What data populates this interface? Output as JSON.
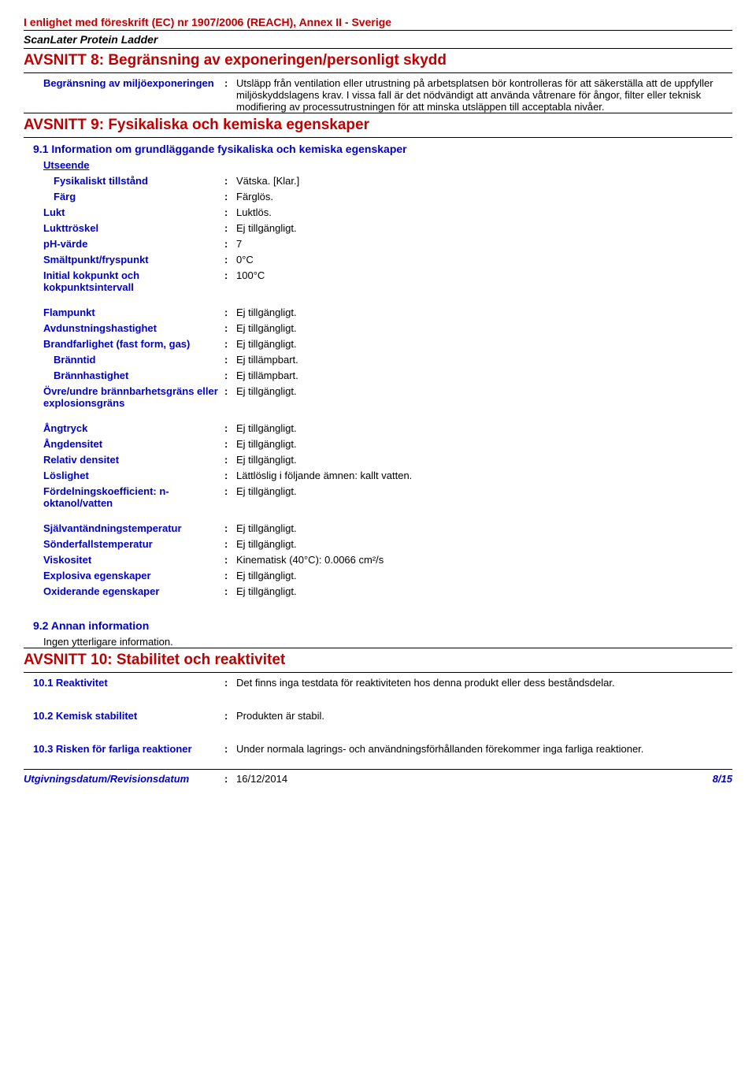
{
  "header": {
    "regulation": "I enlighet med föreskrift (EC) nr 1907/2006 (REACH), Annex II - Sverige",
    "product": "ScanLater Protein Ladder"
  },
  "section8": {
    "title": "AVSNITT 8: Begränsning av exponeringen/personligt skydd",
    "env_limit_label": "Begränsning av miljöexponeringen",
    "env_limit_value": "Utsläpp från ventilation eller utrustning på arbetsplatsen bör kontrolleras för att säkerställa att de uppfyller miljöskyddslagens krav.  I vissa fall är det nödvändigt att använda våtrenare för ångor, filter eller teknisk modifiering av processutrustningen för att minska utsläppen till acceptabla nivåer."
  },
  "section9": {
    "title": "AVSNITT 9: Fysikaliska och kemiska egenskaper",
    "sub91": "9.1 Information om grundläggande fysikaliska och kemiska egenskaper",
    "appearance_label": "Utseende",
    "rows": [
      {
        "label": "Fysikaliskt tillstånd",
        "value": "Vätska. [Klar.]",
        "indent": true
      },
      {
        "label": "Färg",
        "value": "Färglös.",
        "indent": true
      },
      {
        "label": "Lukt",
        "value": "Luktlös."
      },
      {
        "label": "Lukttröskel",
        "value": "Ej tillgängligt."
      },
      {
        "label": "pH-värde",
        "value": "7"
      },
      {
        "label": "Smältpunkt/fryspunkt",
        "value": "0°C"
      },
      {
        "label": "Initial kokpunkt och kokpunktsintervall",
        "value": "100°C"
      },
      {
        "label": "Flampunkt",
        "value": "Ej tillgängligt."
      },
      {
        "label": "Avdunstningshastighet",
        "value": "Ej tillgängligt."
      },
      {
        "label": "Brandfarlighet (fast form, gas)",
        "value": "Ej tillgängligt."
      },
      {
        "label": "Bränntid",
        "value": "Ej tillämpbart.",
        "indent": true
      },
      {
        "label": "Brännhastighet",
        "value": "Ej tillämpbart.",
        "indent": true
      },
      {
        "label": "Övre/undre brännbarhetsgräns eller explosionsgräns",
        "value": "Ej tillgängligt."
      },
      {
        "label": "Ångtryck",
        "value": "Ej tillgängligt."
      },
      {
        "label": "Ångdensitet",
        "value": "Ej tillgängligt."
      },
      {
        "label": "Relativ densitet",
        "value": "Ej tillgängligt."
      },
      {
        "label": "Löslighet",
        "value": "Lättlöslig i följande ämnen: kallt vatten."
      },
      {
        "label": "Fördelningskoefficient: n-oktanol/vatten",
        "value": "Ej tillgängligt."
      },
      {
        "label": "Självantändningstemperatur",
        "value": "Ej tillgängligt."
      },
      {
        "label": "Sönderfallstemperatur",
        "value": "Ej tillgängligt."
      },
      {
        "label": "Viskositet",
        "value": "Kinematisk (40°C): 0.0066 cm²/s"
      },
      {
        "label": "Explosiva egenskaper",
        "value": "Ej tillgängligt."
      },
      {
        "label": "Oxiderande egenskaper",
        "value": "Ej tillgängligt."
      }
    ],
    "sub92": "9.2 Annan information",
    "sub92_body": "Ingen ytterligare information."
  },
  "section10": {
    "title": "AVSNITT 10: Stabilitet och reaktivitet",
    "rows": [
      {
        "label": "10.1 Reaktivitet",
        "value": "Det finns inga testdata för reaktiviteten hos denna produkt eller dess beståndsdelar."
      },
      {
        "label": "10.2 Kemisk stabilitet",
        "value": "Produkten är stabil."
      },
      {
        "label": "10.3 Risken för farliga reaktioner",
        "value": "Under normala lagrings- och användningsförhållanden förekommer inga farliga reaktioner."
      }
    ]
  },
  "footer": {
    "date_label": "Utgivningsdatum/Revisionsdatum",
    "date_value": "16/12/2014",
    "page": "8/15"
  }
}
